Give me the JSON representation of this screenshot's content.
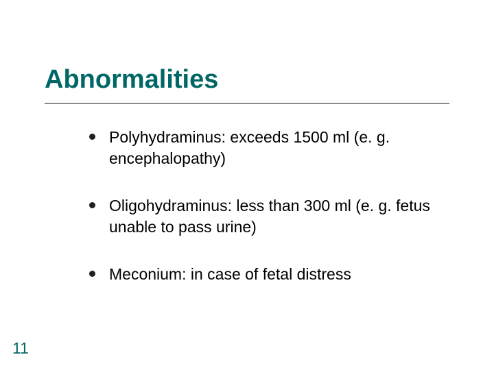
{
  "slide": {
    "title": "Abnormalities",
    "title_color": "#006666",
    "title_fontsize": 38,
    "underline_color": "#8a8a8a",
    "background_color": "#ffffff",
    "bullets": [
      {
        "text": "Polyhydraminus: exceeds 1500 ml (e. g. encephalopathy)"
      },
      {
        "text": "Oligohydraminus: less than 300 ml (e. g. fetus unable to pass urine)"
      },
      {
        "text": "Meconium: in case of fetal distress"
      }
    ],
    "bullet_color": "#202020",
    "body_fontsize": 23,
    "body_text_color": "#000000",
    "page_number": "11",
    "page_number_color": "#006666"
  }
}
